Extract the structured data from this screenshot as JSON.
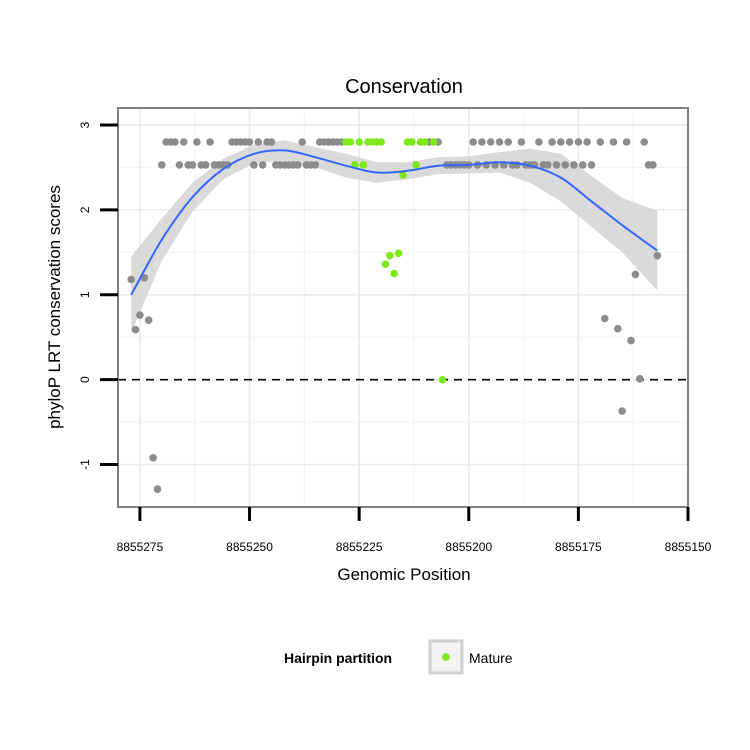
{
  "chart_data": {
    "type": "scatter",
    "title": "Conservation",
    "xlabel": "Genomic Position",
    "ylabel": "phyloP LRT conservation scores",
    "xlim": [
      8855280,
      8855150
    ],
    "ylim": [
      -1.5,
      3.2
    ],
    "x_reversed": true,
    "x_ticks": [
      8855275,
      8855250,
      8855225,
      8855200,
      8855175,
      8855150
    ],
    "y_ticks": [
      -1,
      0,
      1,
      2,
      3
    ],
    "grid": true,
    "reference_line": {
      "y": 0,
      "style": "dashed"
    },
    "colors": {
      "other": "#8c8c8c",
      "mature": "#7fe81a",
      "smooth": "#3366ff",
      "ribbon": "#d3d3d3",
      "grid": "#ebebeb"
    },
    "legend": {
      "title": "Hairpin partition",
      "position": "bottom",
      "entries": [
        "Mature"
      ]
    },
    "series": [
      {
        "name": "",
        "color": "#8c8c8c",
        "points": [
          [
            8855277,
            1.18
          ],
          [
            8855276,
            0.59
          ],
          [
            8855275,
            0.76
          ],
          [
            8855274,
            1.2
          ],
          [
            8855273,
            0.7
          ],
          [
            8855272,
            -0.92
          ],
          [
            8855271,
            -1.29
          ],
          [
            8855270,
            2.53
          ],
          [
            8855269,
            2.8
          ],
          [
            8855268,
            2.8
          ],
          [
            8855267,
            2.8
          ],
          [
            8855266,
            2.53
          ],
          [
            8855265,
            2.8
          ],
          [
            8855264,
            2.53
          ],
          [
            8855263,
            2.53
          ],
          [
            8855262,
            2.8
          ],
          [
            8855261,
            2.53
          ],
          [
            8855260,
            2.53
          ],
          [
            8855259,
            2.8
          ],
          [
            8855258,
            2.53
          ],
          [
            8855257,
            2.53
          ],
          [
            8855256,
            2.53
          ],
          [
            8855255,
            2.53
          ],
          [
            8855254,
            2.8
          ],
          [
            8855253,
            2.8
          ],
          [
            8855252,
            2.8
          ],
          [
            8855251,
            2.8
          ],
          [
            8855250,
            2.8
          ],
          [
            8855249,
            2.53
          ],
          [
            8855248,
            2.8
          ],
          [
            8855247,
            2.53
          ],
          [
            8855246,
            2.8
          ],
          [
            8855245,
            2.8
          ],
          [
            8855244,
            2.53
          ],
          [
            8855243,
            2.53
          ],
          [
            8855242,
            2.53
          ],
          [
            8855241,
            2.53
          ],
          [
            8855240,
            2.53
          ],
          [
            8855239,
            2.53
          ],
          [
            8855238,
            2.8
          ],
          [
            8855237,
            2.53
          ],
          [
            8855236,
            2.53
          ],
          [
            8855235,
            2.53
          ],
          [
            8855234,
            2.8
          ],
          [
            8855233,
            2.8
          ],
          [
            8855232,
            2.8
          ],
          [
            8855231,
            2.8
          ],
          [
            8855230,
            2.8
          ],
          [
            8855229,
            2.8
          ],
          [
            8855209,
            2.8
          ],
          [
            8855207,
            2.8
          ],
          [
            8855205,
            2.53
          ],
          [
            8855204,
            2.53
          ],
          [
            8855203,
            2.53
          ],
          [
            8855202,
            2.53
          ],
          [
            8855201,
            2.53
          ],
          [
            8855200,
            2.53
          ],
          [
            8855199,
            2.8
          ],
          [
            8855198,
            2.53
          ],
          [
            8855197,
            2.8
          ],
          [
            8855196,
            2.53
          ],
          [
            8855195,
            2.8
          ],
          [
            8855194,
            2.53
          ],
          [
            8855193,
            2.8
          ],
          [
            8855192,
            2.53
          ],
          [
            8855191,
            2.8
          ],
          [
            8855190,
            2.53
          ],
          [
            8855189,
            2.53
          ],
          [
            8855188,
            2.8
          ],
          [
            8855187,
            2.53
          ],
          [
            8855186,
            2.53
          ],
          [
            8855185,
            2.53
          ],
          [
            8855184,
            2.8
          ],
          [
            8855183,
            2.53
          ],
          [
            8855182,
            2.53
          ],
          [
            8855181,
            2.8
          ],
          [
            8855180,
            2.53
          ],
          [
            8855179,
            2.8
          ],
          [
            8855178,
            2.53
          ],
          [
            8855177,
            2.8
          ],
          [
            8855176,
            2.53
          ],
          [
            8855175,
            2.8
          ],
          [
            8855174,
            2.53
          ],
          [
            8855173,
            2.8
          ],
          [
            8855172,
            2.53
          ],
          [
            8855170,
            2.8
          ],
          [
            8855169,
            0.72
          ],
          [
            8855167,
            2.8
          ],
          [
            8855166,
            0.6
          ],
          [
            8855165,
            -0.37
          ],
          [
            8855164,
            2.8
          ],
          [
            8855163,
            0.46
          ],
          [
            8855162,
            1.24
          ],
          [
            8855161,
            0.01
          ],
          [
            8855160,
            2.8
          ],
          [
            8855159,
            2.53
          ],
          [
            8855158,
            2.53
          ],
          [
            8855157,
            1.46
          ]
        ]
      },
      {
        "name": "Mature",
        "color": "#7fe81a",
        "points": [
          [
            8855228,
            2.8
          ],
          [
            8855227,
            2.8
          ],
          [
            8855226,
            2.53
          ],
          [
            8855225,
            2.8
          ],
          [
            8855224,
            2.53
          ],
          [
            8855223,
            2.8
          ],
          [
            8855222,
            2.8
          ],
          [
            8855221,
            2.8
          ],
          [
            8855220,
            2.8
          ],
          [
            8855219,
            1.36
          ],
          [
            8855218,
            1.46
          ],
          [
            8855217,
            1.25
          ],
          [
            8855216,
            1.49
          ],
          [
            8855215,
            2.41
          ],
          [
            8855214,
            2.8
          ],
          [
            8855213,
            2.8
          ],
          [
            8855212,
            2.53
          ],
          [
            8855211,
            2.8
          ],
          [
            8855210,
            2.8
          ],
          [
            8855208,
            2.8
          ],
          [
            8855206,
            0.0
          ]
        ]
      }
    ],
    "smooth": {
      "x": [
        8855277,
        8855270,
        8855263,
        8855256,
        8855249,
        8855242,
        8855235,
        8855228,
        8855221,
        8855214,
        8855207,
        8855200,
        8855193,
        8855186,
        8855179,
        8855172,
        8855165,
        8855157
      ],
      "y": [
        1.0,
        1.65,
        2.15,
        2.48,
        2.66,
        2.7,
        2.62,
        2.52,
        2.44,
        2.46,
        2.52,
        2.53,
        2.56,
        2.52,
        2.38,
        2.1,
        1.82,
        1.52
      ],
      "ci_low": [
        0.55,
        1.4,
        1.98,
        2.36,
        2.55,
        2.58,
        2.5,
        2.38,
        2.32,
        2.36,
        2.42,
        2.43,
        2.44,
        2.32,
        2.1,
        1.8,
        1.5,
        1.05
      ],
      "ci_high": [
        1.45,
        1.9,
        2.32,
        2.6,
        2.77,
        2.82,
        2.74,
        2.66,
        2.56,
        2.56,
        2.62,
        2.63,
        2.68,
        2.72,
        2.66,
        2.4,
        2.14,
        1.99
      ]
    }
  }
}
